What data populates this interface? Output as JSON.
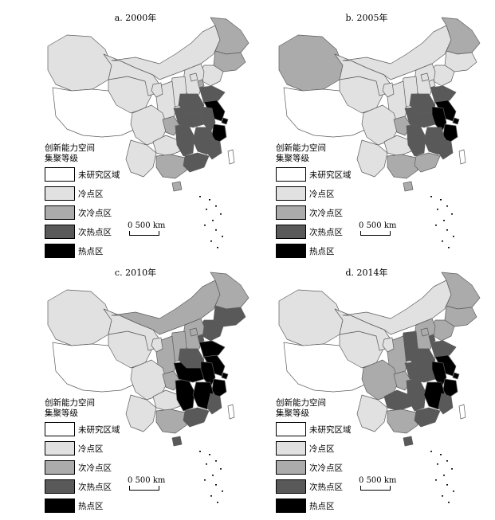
{
  "colors": {
    "未研究区域": "#ffffff",
    "冷点区": "#e1e1e1",
    "次冷点区": "#ababab",
    "次热点区": "#595959",
    "热点区": "#000000"
  },
  "legend": {
    "title_line1": "创新能力空间",
    "title_line2": "集聚等级",
    "items": [
      {
        "label": "未研究区域",
        "key": "未研究区域"
      },
      {
        "label": "冷点区",
        "key": "冷点区"
      },
      {
        "label": "次冷点区",
        "key": "次冷点区"
      },
      {
        "label": "次热点区",
        "key": "次热点区"
      },
      {
        "label": "热点区",
        "key": "热点区"
      }
    ]
  },
  "scale": {
    "zero": "0",
    "distance": "500 km"
  },
  "panels": [
    {
      "title": "a. 2000年",
      "regions": {
        "xinjiang": "冷点区",
        "xizang": "未研究区域",
        "qinghai": "冷点区",
        "gansu": "冷点区",
        "neimenggu": "冷点区",
        "heilongjiang": "次冷点区",
        "jilin": "次冷点区",
        "liaoning": "冷点区",
        "hebei": "冷点区",
        "beijing": "冷点区",
        "tianjin": "次冷点区",
        "shanxi": "冷点区",
        "shaanxi": "冷点区",
        "ningxia": "冷点区",
        "sichuan": "冷点区",
        "chongqing": "次冷点区",
        "yunnan": "冷点区",
        "guizhou": "冷点区",
        "guangxi": "次冷点区",
        "hunan": "次热点区",
        "hubei": "次热点区",
        "henan": "次热点区",
        "shandong": "次热点区",
        "jiangsu": "热点区",
        "anhui": "次热点区",
        "zhejiang": "热点区",
        "shanghai": "热点区",
        "jiangxi": "次热点区",
        "fujian": "次热点区",
        "guangdong": "次热点区",
        "hainan": "次冷点区",
        "taiwan": "未研究区域"
      }
    },
    {
      "title": "b. 2005年",
      "regions": {
        "xinjiang": "次冷点区",
        "xizang": "未研究区域",
        "qinghai": "冷点区",
        "gansu": "冷点区",
        "neimenggu": "冷点区",
        "heilongjiang": "次冷点区",
        "jilin": "冷点区",
        "liaoning": "冷点区",
        "hebei": "冷点区",
        "beijing": "冷点区",
        "tianjin": "冷点区",
        "shanxi": "冷点区",
        "shaanxi": "冷点区",
        "ningxia": "冷点区",
        "sichuan": "冷点区",
        "chongqing": "次冷点区",
        "yunnan": "冷点区",
        "guizhou": "冷点区",
        "guangxi": "次冷点区",
        "hunan": "次热点区",
        "hubei": "次热点区",
        "henan": "次热点区",
        "shandong": "次热点区",
        "jiangsu": "热点区",
        "anhui": "热点区",
        "zhejiang": "热点区",
        "shanghai": "热点区",
        "jiangxi": "次热点区",
        "fujian": "次热点区",
        "guangdong": "次冷点区",
        "hainan": "次冷点区",
        "taiwan": "未研究区域"
      }
    },
    {
      "title": "c. 2010年",
      "regions": {
        "xinjiang": "冷点区",
        "xizang": "未研究区域",
        "qinghai": "冷点区",
        "gansu": "冷点区",
        "neimenggu": "次冷点区",
        "heilongjiang": "次冷点区",
        "jilin": "次热点区",
        "liaoning": "次热点区",
        "hebei": "次冷点区",
        "beijing": "次冷点区",
        "tianjin": "次热点区",
        "shanxi": "次冷点区",
        "shaanxi": "次冷点区",
        "ningxia": "冷点区",
        "sichuan": "冷点区",
        "chongqing": "次冷点区",
        "yunnan": "冷点区",
        "guizhou": "冷点区",
        "guangxi": "次冷点区",
        "hunan": "热点区",
        "hubei": "热点区",
        "henan": "次热点区",
        "shandong": "热点区",
        "jiangsu": "热点区",
        "anhui": "热点区",
        "zhejiang": "热点区",
        "shanghai": "热点区",
        "jiangxi": "热点区",
        "fujian": "次热点区",
        "guangdong": "次热点区",
        "hainan": "次热点区",
        "taiwan": "未研究区域"
      }
    },
    {
      "title": "d. 2014年",
      "regions": {
        "xinjiang": "冷点区",
        "xizang": "未研究区域",
        "qinghai": "冷点区",
        "gansu": "冷点区",
        "neimenggu": "冷点区",
        "heilongjiang": "次冷点区",
        "jilin": "次冷点区",
        "liaoning": "次冷点区",
        "hebei": "次冷点区",
        "beijing": "次冷点区",
        "tianjin": "次热点区",
        "shanxi": "次热点区",
        "shaanxi": "次冷点区",
        "ningxia": "冷点区",
        "sichuan": "次冷点区",
        "chongqing": "次冷点区",
        "yunnan": "冷点区",
        "guizhou": "次热点区",
        "guangxi": "次冷点区",
        "hunan": "次热点区",
        "hubei": "次热点区",
        "henan": "次热点区",
        "shandong": "次热点区",
        "jiangsu": "热点区",
        "anhui": "热点区",
        "zhejiang": "热点区",
        "shanghai": "热点区",
        "jiangxi": "热点区",
        "fujian": "次热点区",
        "guangdong": "次热点区",
        "hainan": "次热点区",
        "taiwan": "未研究区域"
      }
    }
  ]
}
